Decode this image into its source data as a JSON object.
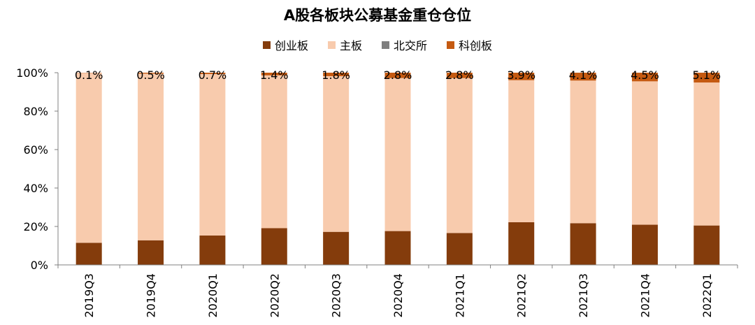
{
  "chart_data": {
    "type": "bar",
    "stacked": true,
    "title": "A股各板块公募基金重仓仓位",
    "categories": [
      "2019Q3",
      "2019Q4",
      "2020Q1",
      "2020Q2",
      "2020Q3",
      "2020Q4",
      "2021Q1",
      "2021Q2",
      "2021Q3",
      "2021Q4",
      "2022Q1"
    ],
    "series": [
      {
        "name": "创业板",
        "color": "#843C0C",
        "values": [
          11.5,
          12.8,
          15.3,
          19.1,
          17.2,
          17.6,
          16.6,
          22.2,
          21.7,
          20.9,
          20.5
        ]
      },
      {
        "name": "主板",
        "color": "#F8CBAD",
        "values": [
          88.4,
          86.7,
          84.0,
          79.5,
          81.0,
          79.6,
          80.6,
          73.9,
          74.2,
          74.6,
          74.4
        ]
      },
      {
        "name": "北交所",
        "color": "#7F7F7F",
        "values": [
          0,
          0,
          0,
          0,
          0,
          0,
          0,
          0,
          0,
          0,
          0
        ]
      },
      {
        "name": "科创板",
        "color": "#C55A11",
        "values": [
          0.1,
          0.5,
          0.7,
          1.4,
          1.8,
          2.8,
          2.8,
          3.9,
          4.1,
          4.5,
          5.1
        ]
      }
    ],
    "data_labels": [
      "0.1%",
      "0.5%",
      "0.7%",
      "1.4%",
      "1.8%",
      "2.8%",
      "2.8%",
      "3.9%",
      "4.1%",
      "4.5%",
      "5.1%"
    ],
    "y_ticks": [
      "0%",
      "20%",
      "40%",
      "60%",
      "80%",
      "100%"
    ],
    "ylim": [
      0,
      100
    ],
    "legend_position": "top"
  }
}
